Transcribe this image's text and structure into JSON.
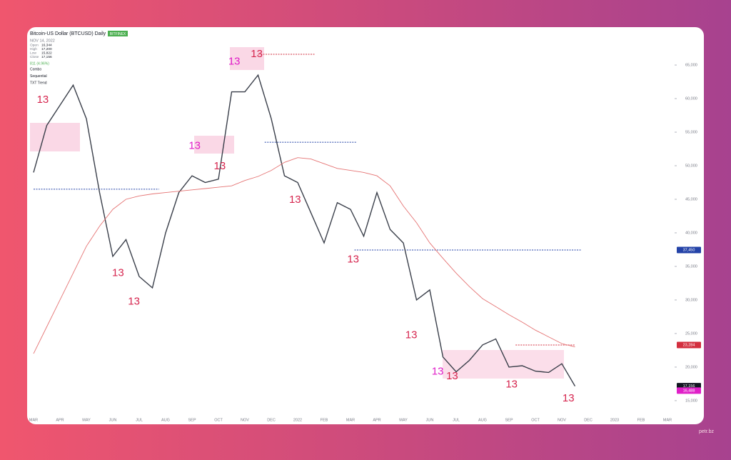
{
  "chart_data": {
    "type": "line",
    "title": "Bitcoin-US Dollar (BTCUSD) Daily",
    "exchange": "BITFINEX",
    "date": "NOV 14, 2022",
    "ohlc": [
      {
        "name": "Open",
        "value": "16,344"
      },
      {
        "name": "High",
        "value": "17,200"
      },
      {
        "name": "Low",
        "value": "15,822"
      },
      {
        "name": "Close",
        "value": "17,156"
      }
    ],
    "change": "811 (4.96%)",
    "indicators": [
      "Combo",
      "Sequential",
      "TXT Trend"
    ],
    "footer": "petr.bz",
    "categories": [
      "MAR",
      null,
      "APR",
      null,
      "MAY",
      null,
      "JUN",
      null,
      "JUL",
      null,
      "AUG",
      null,
      "SEP",
      null,
      "OCT",
      null,
      "NOV",
      null,
      "DEC",
      null,
      "2022",
      null,
      "FEB",
      null,
      "MAR",
      null,
      "APR",
      null,
      "MAY",
      null,
      "JUN",
      null,
      "JUL",
      null,
      "AUG",
      null,
      "SEP",
      null,
      "OCT",
      null,
      "NOV",
      null,
      "DEC",
      null,
      "2023",
      null,
      "FEB",
      null,
      "MAR"
    ],
    "series": [
      {
        "name": "BTCUSD",
        "color": "#3a3f4a",
        "values": [
          49000,
          56000,
          59000,
          62000,
          57000,
          46000,
          36500,
          39000,
          33500,
          31800,
          40000,
          46000,
          48500,
          47500,
          48000,
          61000,
          61000,
          63500,
          57000,
          48500,
          47500,
          43000,
          38500,
          44500,
          43500,
          39500,
          46000,
          40500,
          38500,
          30000,
          31500,
          21500,
          19300,
          21000,
          23300,
          24200,
          20000,
          20200,
          19400,
          19200,
          20500,
          17156,
          null,
          null,
          null,
          null,
          null,
          null,
          null
        ]
      },
      {
        "name": "MA",
        "color": "#e57373",
        "values": [
          22000,
          26000,
          30000,
          34000,
          38000,
          41000,
          43500,
          45000,
          45500,
          45800,
          46000,
          46200,
          46400,
          46600,
          46800,
          47000,
          47800,
          48400,
          49300,
          50500,
          51200,
          51000,
          50300,
          49600,
          49300,
          49000,
          48500,
          47000,
          44000,
          41500,
          38500,
          36200,
          34000,
          32000,
          30200,
          29000,
          27800,
          26700,
          25500,
          24500,
          23500,
          23000,
          null,
          null,
          null,
          null,
          null,
          null,
          null
        ]
      }
    ],
    "ylim": [
      13500,
      69900
    ],
    "yticks": [
      {
        "value": 15000,
        "label": "15,000"
      },
      {
        "value": 20000,
        "label": "20,000"
      },
      {
        "value": 25000,
        "label": "25,000"
      },
      {
        "value": 30000,
        "label": "30,000"
      },
      {
        "value": 35000,
        "label": "35,000"
      },
      {
        "value": 40000,
        "label": "40,000"
      },
      {
        "value": 45000,
        "label": "45,000"
      },
      {
        "value": 50000,
        "label": "50,000"
      },
      {
        "value": 55000,
        "label": "55,000"
      },
      {
        "value": 60000,
        "label": "60,000"
      },
      {
        "value": 65000,
        "label": "65,000"
      }
    ],
    "price_tags": [
      {
        "value": 37450,
        "label": "37,450",
        "color": "#2443a8"
      },
      {
        "value": 23284,
        "label": "23,284",
        "color": "#d32f3f"
      },
      {
        "value": 17156,
        "label": "17,156",
        "color": "#131722"
      },
      {
        "value": 16488,
        "label": "16,488",
        "color": "#e020c8"
      }
    ],
    "levels": [
      {
        "value": 37450,
        "start": 24.3,
        "end": 41.5,
        "color": "#2443a8"
      },
      {
        "value": 53500,
        "start": 17.5,
        "end": 24.5,
        "color": "#2443a8"
      },
      {
        "value": 46500,
        "start": 0,
        "end": 9.5,
        "color": "#2443a8"
      },
      {
        "value": 23284,
        "start": 36.5,
        "end": 41,
        "color": "#d32f3f"
      },
      {
        "value": 66600,
        "start": 17,
        "end": 21.3,
        "color": "#d32f3f"
      }
    ],
    "annotations": [
      {
        "text": "13",
        "x": 0.7,
        "y": 59800,
        "color": "#d6264f"
      },
      {
        "text": "13",
        "x": 6.4,
        "y": 34000,
        "color": "#d6264f"
      },
      {
        "text": "13",
        "x": 7.6,
        "y": 29700,
        "color": "#d6264f"
      },
      {
        "text": "13",
        "x": 12.2,
        "y": 52900,
        "color": "#e020c8"
      },
      {
        "text": "13",
        "x": 14.1,
        "y": 49900,
        "color": "#d6264f"
      },
      {
        "text": "13",
        "x": 15.2,
        "y": 65500,
        "color": "#e020c8"
      },
      {
        "text": "13",
        "x": 16.9,
        "y": 66600,
        "color": "#d6264f"
      },
      {
        "text": "13",
        "x": 19.8,
        "y": 44900,
        "color": "#d6264f"
      },
      {
        "text": "13",
        "x": 24.2,
        "y": 36000,
        "color": "#d6264f"
      },
      {
        "text": "13",
        "x": 28.6,
        "y": 24700,
        "color": "#d6264f"
      },
      {
        "text": "13",
        "x": 30.6,
        "y": 19300,
        "color": "#e020c8"
      },
      {
        "text": "13",
        "x": 31.7,
        "y": 18600,
        "color": "#d6264f"
      },
      {
        "text": "13",
        "x": 36.2,
        "y": 17400,
        "color": "#d6264f"
      },
      {
        "text": "13",
        "x": 40.5,
        "y": 15300,
        "color": "#d6264f"
      }
    ]
  }
}
